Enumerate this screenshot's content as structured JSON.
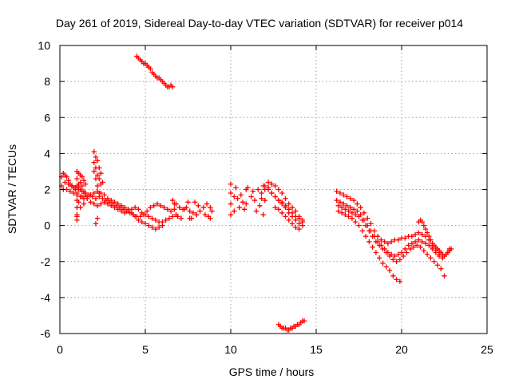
{
  "chart_data": {
    "type": "scatter",
    "title": "Day 261 of 2019, Sidereal Day-to-day VTEC variation (SDTVAR) for receiver p014",
    "xlabel": "GPS time / hours",
    "ylabel": "SDTVAR / TECUs",
    "xlim": [
      0,
      25
    ],
    "ylim": [
      -6,
      10
    ],
    "x_ticks": [
      "0",
      "5",
      "10",
      "15",
      "20",
      "25"
    ],
    "y_ticks": [
      "-6",
      "-4",
      "-2",
      "0",
      "2",
      "4",
      "6",
      "8",
      "10"
    ],
    "grid": true,
    "marker": "plus",
    "color": "#ff0000",
    "series": [
      {
        "name": "SDTVAR",
        "x": [
          0.1,
          0.2,
          0.3,
          0.4,
          0.5,
          0.6,
          0.7,
          0.8,
          0.9,
          1.0,
          1.1,
          1.2,
          1.3,
          1.4,
          1.5,
          1.6,
          1.8,
          2.0,
          2.2,
          2.4,
          2.6,
          2.8,
          3.0,
          3.2,
          3.4,
          3.6,
          3.8,
          4.0,
          4.2,
          4.4,
          4.6,
          4.8,
          5.0,
          5.2,
          5.4,
          5.6,
          5.8,
          6.0,
          6.2,
          6.4,
          6.6,
          6.8,
          0.1,
          0.3,
          0.5,
          0.7,
          0.9,
          1.1,
          1.3,
          1.5,
          1.7,
          1.9,
          2.1,
          2.3,
          2.5,
          2.7,
          2.9,
          3.1,
          3.3,
          3.5,
          3.7,
          3.9,
          4.1,
          4.3,
          4.5,
          4.7,
          4.9,
          5.1,
          5.3,
          5.5,
          5.7,
          5.9,
          6.1,
          6.3,
          6.5,
          6.7,
          0.2,
          0.4,
          0.6,
          0.8,
          1.0,
          1.2,
          1.4,
          1.6,
          1.8,
          2.0,
          2.2,
          2.4,
          2.6,
          2.8,
          3.0,
          3.2,
          3.4,
          3.6,
          3.8,
          4.0,
          4.2,
          4.4,
          4.6,
          4.8,
          5.0,
          5.2,
          5.4,
          5.6,
          5.8,
          6.0,
          1.0,
          1.0,
          1.0,
          1.0,
          1.0,
          1.0,
          1.0,
          1.0,
          1.0,
          1.1,
          1.1,
          1.1,
          1.2,
          1.2,
          1.2,
          1.3,
          1.3,
          1.4,
          1.4,
          1.5,
          1.5,
          2.0,
          2.0,
          2.0,
          2.1,
          2.1,
          2.1,
          2.1,
          2.2,
          2.2,
          2.2,
          2.2,
          2.3,
          2.3,
          2.3,
          2.4,
          2.4,
          2.5,
          6.8,
          7.0,
          7.2,
          7.4,
          7.6,
          7.8,
          8.0,
          8.2,
          8.4,
          8.6,
          8.8,
          6.9,
          7.1,
          7.3,
          7.5,
          7.7,
          7.9,
          8.1,
          8.5,
          8.7,
          8.9,
          6.6,
          6.7,
          7.6,
          8.0,
          8.8,
          4.5,
          4.6,
          4.7,
          4.8,
          4.9,
          5.0,
          5.1,
          5.2,
          5.3,
          5.4,
          5.5,
          5.6,
          5.7,
          5.8,
          5.9,
          6.0,
          6.1,
          6.2,
          6.3,
          6.4,
          6.5,
          6.6,
          10.0,
          10.0,
          10.0,
          10.0,
          10.2,
          10.2,
          10.3,
          10.4,
          10.5,
          10.6,
          10.7,
          10.8,
          11.0,
          11.2,
          11.3,
          11.4,
          11.5,
          11.6,
          11.7,
          11.8,
          11.9,
          12.0,
          12.0,
          11.9,
          10.9,
          10.9,
          11.8,
          12.2,
          12.0,
          12.2,
          12.4,
          12.6,
          12.8,
          13.0,
          13.2,
          13.4,
          13.6,
          13.8,
          14.0,
          14.2,
          12.2,
          12.4,
          12.6,
          12.8,
          13.0,
          13.2,
          13.4,
          13.6,
          13.8,
          14.0,
          14.2,
          12.4,
          12.6,
          12.8,
          13.0,
          13.2,
          13.4,
          13.6,
          13.8,
          14.0,
          14.2,
          12.6,
          12.8,
          13.0,
          13.2,
          13.4,
          13.6,
          13.8,
          14.0,
          12.8,
          12.9,
          13.0,
          13.1,
          13.2,
          13.3,
          13.4,
          13.5,
          13.6,
          13.7,
          13.8,
          13.9,
          14.0,
          14.1,
          14.2,
          14.3,
          16.2,
          16.4,
          16.6,
          16.8,
          17.0,
          17.2,
          17.4,
          17.6,
          17.8,
          18.0,
          18.2,
          18.4,
          18.6,
          18.8,
          19.0,
          19.2,
          19.4,
          19.6,
          19.8,
          20.0,
          20.2,
          20.4,
          20.6,
          20.8,
          21.0,
          21.2,
          21.4,
          21.6,
          21.8,
          22.0,
          22.2,
          22.4,
          22.6,
          22.8,
          16.2,
          16.4,
          16.6,
          16.8,
          17.0,
          17.2,
          17.4,
          17.6,
          17.8,
          18.0,
          18.2,
          18.4,
          18.6,
          18.8,
          19.0,
          19.2,
          19.4,
          19.6,
          19.8,
          20.0,
          20.2,
          20.4,
          20.6,
          20.8,
          21.0,
          21.2,
          21.4,
          21.6,
          21.8,
          22.0,
          22.2,
          22.4,
          22.6,
          22.8,
          16.3,
          16.5,
          16.7,
          16.9,
          17.1,
          17.3,
          17.5,
          17.7,
          17.9,
          18.1,
          18.3,
          18.5,
          18.7,
          18.9,
          19.1,
          19.3,
          19.5,
          19.7,
          19.9,
          20.1,
          20.3,
          20.5,
          20.7,
          20.9,
          21.1,
          21.3,
          21.5,
          21.7,
          21.9,
          22.1,
          22.3,
          22.5,
          16.3,
          16.5,
          16.7,
          16.9,
          17.1,
          17.3,
          17.5,
          17.7,
          17.9,
          18.1,
          18.3,
          18.5,
          18.7,
          18.9,
          19.1,
          19.3,
          19.5,
          19.7,
          19.9,
          21.0,
          21.1,
          21.2,
          21.3,
          21.4,
          21.5,
          21.6,
          21.7,
          21.8,
          21.9,
          22.0,
          22.1,
          22.2,
          22.3,
          22.4,
          22.5,
          22.6,
          22.7,
          22.8,
          22.9
        ],
        "y": [
          2.7,
          2.9,
          2.8,
          2.7,
          2.5,
          2.3,
          2.2,
          2.1,
          2.0,
          2.1,
          2.3,
          2.4,
          2.2,
          1.9,
          1.7,
          1.5,
          1.3,
          1.2,
          1.1,
          1.2,
          1.3,
          1.2,
          1.1,
          1.0,
          0.9,
          0.8,
          0.7,
          0.8,
          0.9,
          1.0,
          0.9,
          0.7,
          0.6,
          0.5,
          0.4,
          0.3,
          0.2,
          0.2,
          0.3,
          0.4,
          0.5,
          0.6,
          2.2,
          2.4,
          2.3,
          2.2,
          2.1,
          2.0,
          1.9,
          1.8,
          1.7,
          1.6,
          1.5,
          1.6,
          1.5,
          1.4,
          1.3,
          1.2,
          1.1,
          1.0,
          0.9,
          0.8,
          0.7,
          0.6,
          0.5,
          0.5,
          0.6,
          0.8,
          1.0,
          1.1,
          1.2,
          1.1,
          1.0,
          0.9,
          0.8,
          0.9,
          2.0,
          2.0,
          1.9,
          1.8,
          1.7,
          1.6,
          1.5,
          1.6,
          1.7,
          1.8,
          1.9,
          1.8,
          1.7,
          1.5,
          1.4,
          1.3,
          1.2,
          1.1,
          1.0,
          0.9,
          0.7,
          0.5,
          0.3,
          0.2,
          0.1,
          0.0,
          -0.1,
          -0.2,
          -0.1,
          0.0,
          3.0,
          2.6,
          2.2,
          1.8,
          1.4,
          1.0,
          0.6,
          0.3,
          0.5,
          2.9,
          2.1,
          1.3,
          2.8,
          2.0,
          1.0,
          2.7,
          1.6,
          2.5,
          1.2,
          2.3,
          1.8,
          4.1,
          3.5,
          3.0,
          3.8,
          3.2,
          2.6,
          0.1,
          3.6,
          2.8,
          2.2,
          0.4,
          3.2,
          2.6,
          1.8,
          2.9,
          2.3,
          2.4,
          1.2,
          1.0,
          0.9,
          1.0,
          0.8,
          0.7,
          0.6,
          0.8,
          1.0,
          1.2,
          1.0,
          0.5,
          0.4,
          0.9,
          1.3,
          0.4,
          1.3,
          1.1,
          0.6,
          0.5,
          0.8,
          1.4,
          1.2,
          0.4,
          0.6,
          0.4,
          9.4,
          9.3,
          9.2,
          9.1,
          9.0,
          9.0,
          8.9,
          8.8,
          8.7,
          8.5,
          8.4,
          8.3,
          8.2,
          8.2,
          8.1,
          8.0,
          7.9,
          7.8,
          7.7,
          7.7,
          7.8,
          7.7,
          2.3,
          1.8,
          1.2,
          0.6,
          1.6,
          0.8,
          2.1,
          1.5,
          1.0,
          1.7,
          1.3,
          0.9,
          2.1,
          1.6,
          1.9,
          1.4,
          0.8,
          2.0,
          1.1,
          1.8,
          0.6,
          2.0,
          1.4,
          2.2,
          2.0,
          1.2,
          1.5,
          2.1,
          2.2,
          2.0,
          1.8,
          1.6,
          1.4,
          1.3,
          1.1,
          0.9,
          0.7,
          0.5,
          0.4,
          0.3,
          2.4,
          2.3,
          2.2,
          2.0,
          1.8,
          1.5,
          1.2,
          1.0,
          0.8,
          0.5,
          0.2,
          1.8,
          1.6,
          1.4,
          1.2,
          1.0,
          0.7,
          0.5,
          0.3,
          0.1,
          0.0,
          1.0,
          0.9,
          0.7,
          0.5,
          0.3,
          0.1,
          -0.1,
          -0.2,
          -5.5,
          -5.6,
          -5.7,
          -5.7,
          -5.7,
          -5.8,
          -5.8,
          -5.7,
          -5.7,
          -5.6,
          -5.6,
          -5.5,
          -5.5,
          -5.4,
          -5.3,
          -5.3,
          1.9,
          1.8,
          1.7,
          1.6,
          1.5,
          1.4,
          1.2,
          1.0,
          0.7,
          0.4,
          0.1,
          -0.3,
          -0.6,
          -0.8,
          -0.9,
          -1.0,
          -0.9,
          -0.8,
          -0.8,
          -0.7,
          -0.7,
          -0.6,
          -0.6,
          -0.5,
          -0.4,
          -0.5,
          -0.6,
          -0.8,
          -1.2,
          -1.4,
          -1.6,
          -1.8,
          -1.6,
          -1.3,
          1.4,
          1.3,
          1.2,
          1.1,
          1.0,
          0.9,
          0.8,
          0.6,
          0.3,
          0.0,
          -0.3,
          -0.6,
          -0.9,
          -1.1,
          -1.3,
          -1.5,
          -1.6,
          -1.7,
          -1.6,
          -1.5,
          -1.3,
          -1.1,
          -1.0,
          -0.9,
          -0.8,
          -0.9,
          -1.0,
          -1.1,
          -1.3,
          -1.5,
          -1.7,
          -1.8,
          -1.6,
          -1.4,
          1.1,
          1.0,
          0.9,
          0.8,
          0.7,
          0.6,
          0.5,
          0.3,
          0.0,
          -0.3,
          -0.6,
          -0.9,
          -1.1,
          -1.3,
          -1.5,
          -1.7,
          -1.9,
          -2.0,
          -1.9,
          -1.7,
          -1.5,
          -1.3,
          -1.2,
          -1.1,
          -1.2,
          -1.4,
          -1.6,
          -1.8,
          -2.0,
          -2.2,
          -2.4,
          -2.8,
          0.8,
          0.7,
          0.6,
          0.5,
          0.4,
          0.2,
          0.0,
          -0.3,
          -0.6,
          -0.9,
          -1.2,
          -1.5,
          -1.8,
          -2.1,
          -2.3,
          -2.5,
          -2.8,
          -3.0,
          -3.1,
          0.2,
          0.3,
          0.2,
          0.0,
          -0.2,
          -0.4,
          -0.6,
          -0.8,
          -1.0,
          -1.1,
          -1.2,
          -1.3,
          -1.4,
          -1.5,
          -1.6,
          -1.7,
          -1.6,
          -1.5,
          -1.4,
          -1.3
        ]
      }
    ]
  }
}
